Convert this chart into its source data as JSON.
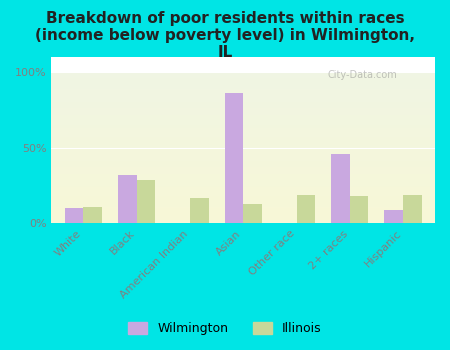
{
  "title": "Breakdown of poor residents within races\n(income below poverty level) in Wilmington,\nIL",
  "categories": [
    "White",
    "Black",
    "American Indian",
    "Asian",
    "Other race",
    "2+ races",
    "Hispanic"
  ],
  "wilmington": [
    10,
    32,
    0,
    86,
    0,
    46,
    9
  ],
  "illinois": [
    11,
    29,
    17,
    13,
    19,
    18,
    19
  ],
  "wilmington_color": "#c9a8e0",
  "illinois_color": "#c8d89a",
  "bg_outer": "#00e5e5",
  "yticks": [
    0,
    50,
    100
  ],
  "ytick_labels": [
    "0%",
    "50%",
    "100%"
  ],
  "bar_width": 0.35,
  "title_fontsize": 11,
  "tick_fontsize": 8,
  "legend_fontsize": 9,
  "watermark": "City-Data.com"
}
